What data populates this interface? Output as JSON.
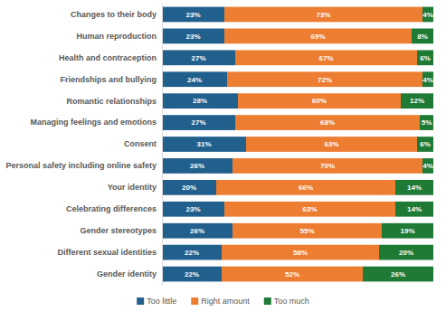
{
  "chart_data": {
    "type": "bar",
    "orientation": "horizontal",
    "stacked": true,
    "data_labels": true,
    "tick_labels": "y",
    "legend": "bottom",
    "categories": [
      "Changes to their body",
      "Human reproduction",
      "Health and contraception",
      "Friendships and bullying",
      "Romantic relationships",
      "Managing feelings and emotions",
      "Consent",
      "Personal safety including online safety",
      "Your identity",
      "Celebrating differences",
      "Gender stereotypes",
      "Different sexual identities",
      "Gender identity"
    ],
    "xlim": [
      0,
      100
    ],
    "series": [
      {
        "name": "Too little",
        "color": "#215f8d",
        "values": [
          23,
          23,
          27,
          24,
          28,
          27,
          31,
          26,
          20,
          23,
          26,
          22,
          22
        ],
        "value_labels": [
          "23%",
          "23%",
          "27%",
          "24%",
          "28%",
          "27%",
          "31%",
          "26%",
          "20%",
          "23%",
          "26%",
          "22%",
          "22%"
        ]
      },
      {
        "name": "Right amount",
        "color": "#ed7d31",
        "values": [
          73,
          69,
          67,
          72,
          60,
          68,
          63,
          70,
          66,
          63,
          55,
          58,
          52
        ],
        "value_labels": [
          "73%",
          "69%",
          "67%",
          "72%",
          "60%",
          "68%",
          "63%",
          "70%",
          "66%",
          "63%",
          "55%",
          "58%",
          "52%"
        ]
      },
      {
        "name": "Too much",
        "color": "#1f7a36",
        "values": [
          4,
          8,
          6,
          4,
          12,
          5,
          6,
          4,
          14,
          14,
          19,
          20,
          26
        ],
        "value_labels": [
          "4%",
          "8%",
          "6%",
          "4%",
          "12%",
          "5%",
          "6%",
          "4%",
          "14%",
          "14%",
          "19%",
          "20%",
          "26%"
        ]
      }
    ]
  }
}
